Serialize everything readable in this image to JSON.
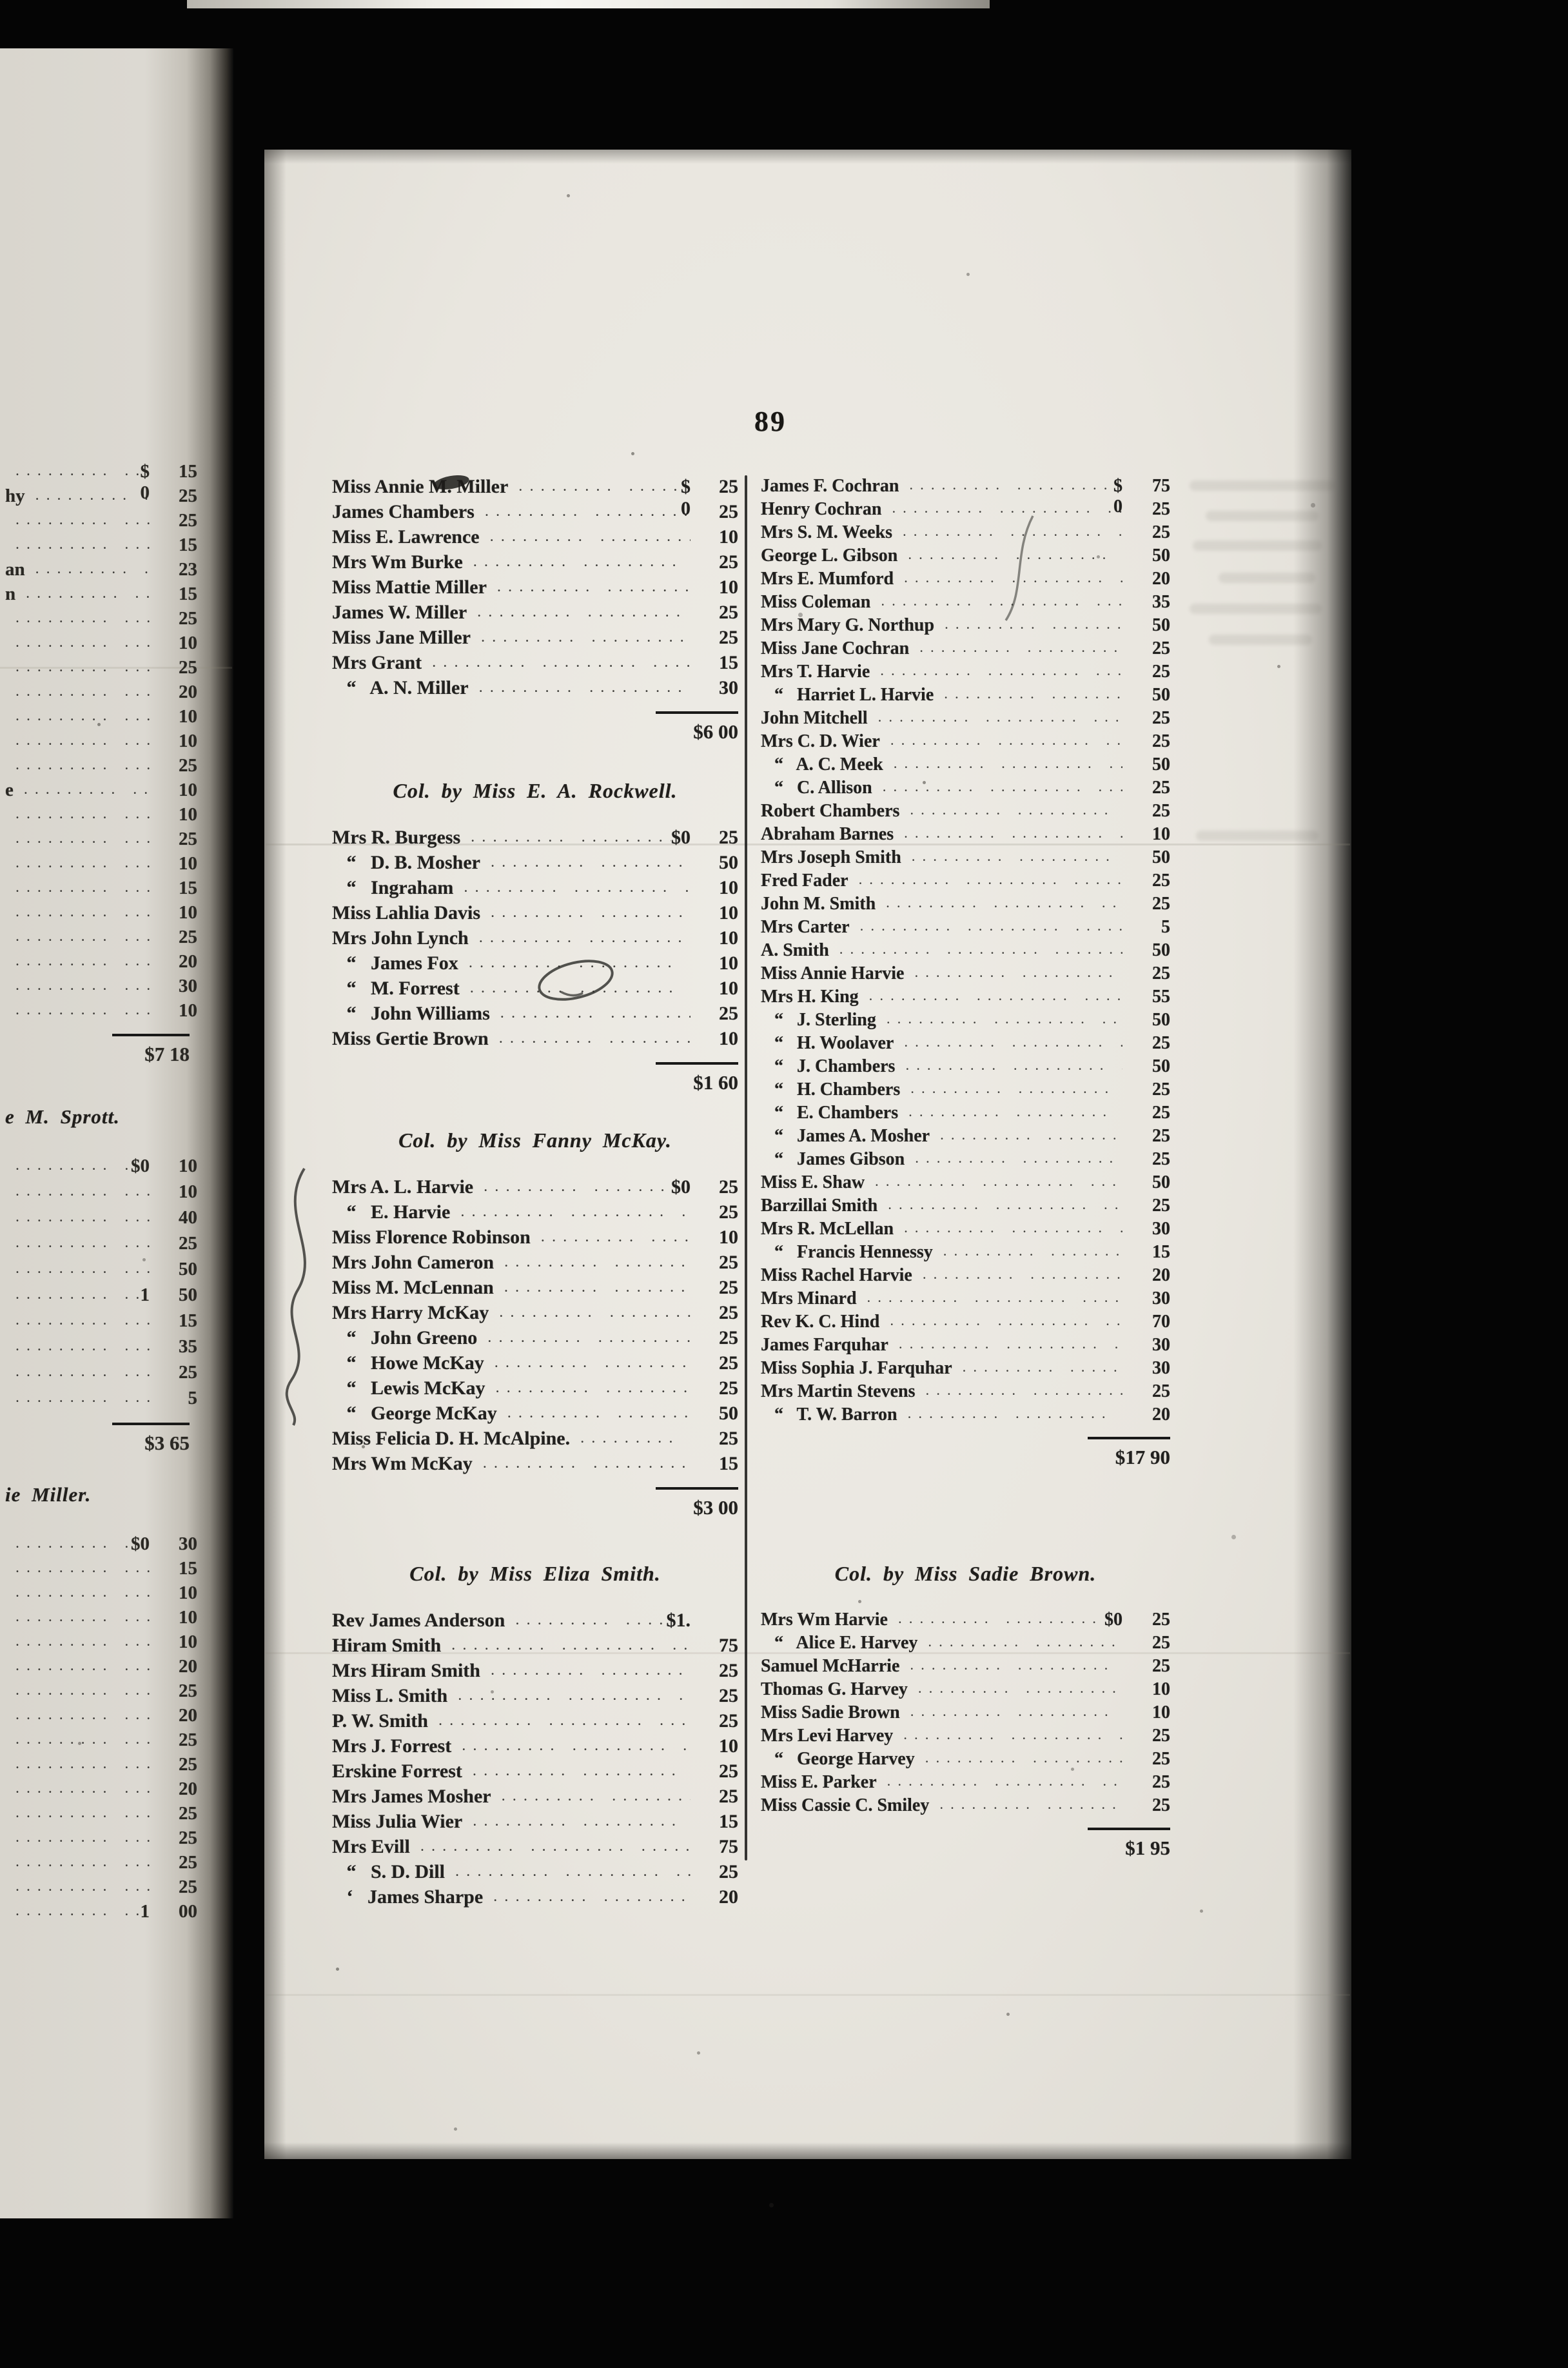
{
  "page": {
    "number": "89",
    "leader_dots": "........."
  },
  "facing_page": {
    "sections": [
      {
        "header": null,
        "rows": [
          {
            "n": "",
            "p": "$ 0",
            "v": "15"
          },
          {
            "n": "hy",
            "v": "25"
          },
          {
            "n": "",
            "v": "25"
          },
          {
            "n": "",
            "v": "15"
          },
          {
            "n": "an",
            "v": "23"
          },
          {
            "n": "n",
            "v": "15"
          },
          {
            "n": "",
            "v": "25"
          },
          {
            "n": "",
            "v": "10"
          },
          {
            "n": "",
            "v": "25"
          },
          {
            "n": "",
            "v": "20"
          },
          {
            "n": "",
            "v": "10"
          },
          {
            "n": "",
            "v": "10"
          },
          {
            "n": "",
            "v": "25"
          },
          {
            "n": "e",
            "v": "10"
          },
          {
            "n": "",
            "v": "10"
          },
          {
            "n": "",
            "v": "25"
          },
          {
            "n": "",
            "v": "10"
          },
          {
            "n": "",
            "v": "15"
          },
          {
            "n": "",
            "v": "10"
          },
          {
            "n": "",
            "v": "25"
          },
          {
            "n": "",
            "v": "20"
          },
          {
            "n": "",
            "v": "30"
          },
          {
            "n": "",
            "v": "10"
          }
        ],
        "total": "$7 18"
      },
      {
        "header": "e M. Sprott.",
        "rows": [
          {
            "n": "",
            "p": "$0",
            "v": "10"
          },
          {
            "n": "",
            "v": "10"
          },
          {
            "n": "",
            "v": "40"
          },
          {
            "n": "",
            "v": "25"
          },
          {
            "n": "",
            "v": "50"
          },
          {
            "n": "",
            "p": "1",
            "v": "50"
          },
          {
            "n": "",
            "v": "15"
          },
          {
            "n": "",
            "v": "35"
          },
          {
            "n": "",
            "v": "25"
          },
          {
            "n": "",
            "v": "5"
          }
        ],
        "total": "$3 65"
      },
      {
        "header": "ie Miller.",
        "rows": [
          {
            "n": "",
            "p": "$0",
            "v": "30"
          },
          {
            "n": "",
            "v": "15"
          },
          {
            "n": "",
            "v": "10"
          },
          {
            "n": "",
            "v": "10"
          },
          {
            "n": "",
            "v": "10"
          },
          {
            "n": "",
            "v": "20"
          },
          {
            "n": "",
            "v": "25"
          },
          {
            "n": "",
            "v": "20"
          },
          {
            "n": "",
            "v": "25"
          },
          {
            "n": "",
            "v": "25"
          },
          {
            "n": "",
            "v": "20"
          },
          {
            "n": "",
            "v": "25"
          },
          {
            "n": "",
            "v": "25"
          },
          {
            "n": "",
            "v": "25"
          },
          {
            "n": "",
            "v": "25"
          },
          {
            "n": "",
            "p": "1",
            "v": "00"
          }
        ],
        "total": null
      }
    ]
  },
  "column1": {
    "sections": [
      {
        "header": null,
        "rows": [
          {
            "n": "Miss Annie M. Miller",
            "p": "$ 0",
            "v": "25"
          },
          {
            "n": "James Chambers",
            "v": "25"
          },
          {
            "n": "Miss E. Lawrence",
            "v": "10"
          },
          {
            "n": "Mrs Wm Burke",
            "v": "25"
          },
          {
            "n": "Miss Mattie Miller",
            "v": "10"
          },
          {
            "n": "James W. Miller",
            "v": "25"
          },
          {
            "n": "Miss Jane Miller",
            "v": "25"
          },
          {
            "n": "Mrs Grant",
            "v": "15"
          },
          {
            "n": "   “   A. N. Miller",
            "v": "30"
          }
        ],
        "total": "$6 00"
      },
      {
        "header": "Col. by Miss E. A. Rockwell.",
        "rows": [
          {
            "n": "Mrs R. Burgess",
            "p": "$0",
            "v": "25"
          },
          {
            "n": "   “   D. B. Mosher",
            "v": "50"
          },
          {
            "n": "   “   Ingraham",
            "v": "10"
          },
          {
            "n": "Miss Lahlia Davis",
            "v": "10"
          },
          {
            "n": "Mrs John Lynch",
            "v": "10"
          },
          {
            "n": "   “   James Fox",
            "v": "10"
          },
          {
            "n": "   “   M. Forrest",
            "v": "10"
          },
          {
            "n": "   “   John Williams",
            "v": "25"
          },
          {
            "n": "Miss Gertie Brown",
            "v": "10"
          }
        ],
        "total": "$1 60"
      },
      {
        "header": "Col. by Miss Fanny McKay.",
        "rows": [
          {
            "n": "Mrs A. L. Harvie",
            "p": "$0",
            "v": "25"
          },
          {
            "n": "   “   E. Harvie",
            "v": "25"
          },
          {
            "n": "Miss Florence Robinson",
            "v": "10"
          },
          {
            "n": "Mrs John Cameron",
            "v": "25"
          },
          {
            "n": "Miss M. McLennan",
            "v": "25"
          },
          {
            "n": "Mrs Harry McKay",
            "v": "25"
          },
          {
            "n": "   “   John Greeno",
            "v": "25"
          },
          {
            "n": "   “   Howe McKay",
            "v": "25"
          },
          {
            "n": "   “   Lewis McKay",
            "v": "25"
          },
          {
            "n": "   “   George McKay",
            "v": "50"
          },
          {
            "n": "Miss Felicia D. H. McAlpine.",
            "v": "25"
          },
          {
            "n": "Mrs Wm McKay",
            "v": "15"
          }
        ],
        "total": "$3 00"
      },
      {
        "header": "Col. by Miss Eliza Smith.",
        "rows": [
          {
            "n": "Rev James Anderson",
            "p": "$1.",
            "v": ""
          },
          {
            "n": "Hiram Smith",
            "v": "75"
          },
          {
            "n": "Mrs Hiram Smith",
            "v": "25"
          },
          {
            "n": "Miss L. Smith",
            "v": "25"
          },
          {
            "n": "P. W. Smith",
            "v": "25"
          },
          {
            "n": "Mrs J. Forrest",
            "v": "10"
          },
          {
            "n": "Erskine Forrest",
            "v": "25"
          },
          {
            "n": "Mrs James Mosher",
            "v": "25"
          },
          {
            "n": "Miss Julia Wier",
            "v": "15"
          },
          {
            "n": "Mrs Evill",
            "v": "75"
          },
          {
            "n": "   “   S. D. Dill",
            "v": "25"
          },
          {
            "n": "   ‘   James Sharpe",
            "v": "20"
          }
        ],
        "total": null
      }
    ]
  },
  "column2": {
    "sections": [
      {
        "header": null,
        "rows": [
          {
            "n": "James F. Cochran",
            "p": "$ 0",
            "v": "75"
          },
          {
            "n": "Henry Cochran",
            "v": "25"
          },
          {
            "n": "Mrs S. M. Weeks",
            "v": "25"
          },
          {
            "n": "George L. Gibson",
            "v": "50"
          },
          {
            "n": "Mrs E. Mumford",
            "v": "20"
          },
          {
            "n": "Miss Coleman",
            "v": "35"
          },
          {
            "n": "Mrs Mary G. Northup",
            "v": "50"
          },
          {
            "n": "Miss Jane Cochran",
            "v": "25"
          },
          {
            "n": "Mrs T. Harvie",
            "v": "25"
          },
          {
            "n": "   “   Harriet L. Harvie",
            "v": "50"
          },
          {
            "n": "John Mitchell",
            "v": "25"
          },
          {
            "n": "Mrs C. D. Wier",
            "v": "25"
          },
          {
            "n": "   “   A. C. Meek",
            "v": "50"
          },
          {
            "n": "   “   C. Allison",
            "v": "25"
          },
          {
            "n": "Robert Chambers",
            "v": "25"
          },
          {
            "n": "Abraham Barnes",
            "v": "10"
          },
          {
            "n": "Mrs Joseph Smith",
            "v": "50"
          },
          {
            "n": "Fred Fader",
            "v": "25"
          },
          {
            "n": "John M. Smith",
            "v": "25"
          },
          {
            "n": "Mrs Carter",
            "v": "5"
          },
          {
            "n": "A. Smith",
            "v": "50"
          },
          {
            "n": "Miss Annie Harvie",
            "v": "25"
          },
          {
            "n": "Mrs H. King",
            "v": "55"
          },
          {
            "n": "   “   J. Sterling",
            "v": "50"
          },
          {
            "n": "   “   H. Woolaver",
            "v": "25"
          },
          {
            "n": "   “   J. Chambers",
            "v": "50"
          },
          {
            "n": "   “   H. Chambers",
            "v": "25"
          },
          {
            "n": "   “   E. Chambers",
            "v": "25"
          },
          {
            "n": "   “   James A. Mosher",
            "v": "25"
          },
          {
            "n": "   “   James Gibson",
            "v": "25"
          },
          {
            "n": "Miss E. Shaw",
            "v": "50"
          },
          {
            "n": "Barzillai Smith",
            "v": "25"
          },
          {
            "n": "Mrs R. McLellan",
            "v": "30"
          },
          {
            "n": "   “   Francis Hennessy",
            "v": "15"
          },
          {
            "n": "Miss Rachel Harvie",
            "v": "20"
          },
          {
            "n": "Mrs Minard",
            "v": "30"
          },
          {
            "n": "Rev K. C. Hind",
            "v": "70"
          },
          {
            "n": "James Farquhar",
            "v": "30"
          },
          {
            "n": "Miss Sophia J. Farquhar",
            "v": "30"
          },
          {
            "n": "Mrs Martin Stevens",
            "v": "25"
          },
          {
            "n": "   “   T. W. Barron",
            "v": "20"
          }
        ],
        "total": "$17 90"
      },
      {
        "header": "Col. by Miss Sadie Brown.",
        "rows": [
          {
            "n": "Mrs Wm Harvie",
            "p": "$0",
            "v": "25"
          },
          {
            "n": "   “   Alice E. Harvey",
            "v": "25"
          },
          {
            "n": "Samuel McHarrie",
            "v": "25"
          },
          {
            "n": "Thomas G. Harvey",
            "v": "10"
          },
          {
            "n": "Miss Sadie Brown",
            "v": "10"
          },
          {
            "n": "Mrs Levi Harvey",
            "v": "25"
          },
          {
            "n": "   “   George Harvey",
            "v": "25"
          },
          {
            "n": "Miss E. Parker",
            "v": "25"
          },
          {
            "n": "Miss Cassie C. Smiley",
            "v": "25"
          }
        ],
        "total": "$1 95"
      }
    ]
  }
}
